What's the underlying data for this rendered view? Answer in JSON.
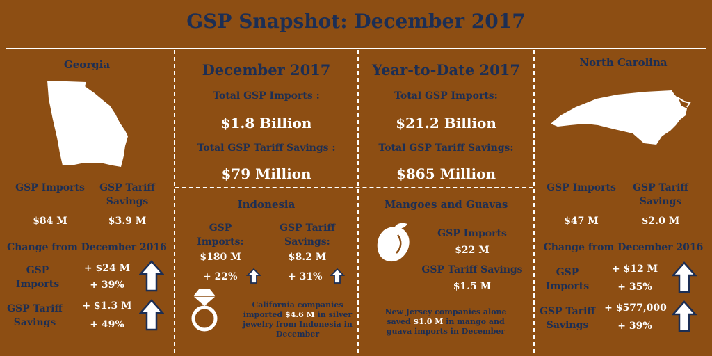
{
  "title": "GSP Snapshot: December 2017",
  "colors": {
    "background": "#8d4e13",
    "navy": "#1c2e54",
    "white": "#ffffff"
  },
  "georgia": {
    "name": "Georgia",
    "imports_label": "GSP Imports",
    "savings_label": "GSP Tariff Savings",
    "imports_value": "$84 M",
    "savings_value": "$3.9 M",
    "change_title": "Change from December 2016",
    "change_imports_label": "GSP Imports",
    "change_imports_abs": "+ $24 M",
    "change_imports_pct": "+ 39%",
    "change_savings_label": "GSP Tariff Savings",
    "change_savings_abs": "+ $1.3 M",
    "change_savings_pct": "+ 49%"
  },
  "december": {
    "heading": "December 2017",
    "imports_label": "Total GSP Imports :",
    "imports_value": "$1.8 Billion",
    "savings_label": "Total GSP Tariff Savings :",
    "savings_value": "$79 Million"
  },
  "ytd": {
    "heading": "Year-to-Date 2017",
    "imports_label": "Total GSP Imports:",
    "imports_value": "$21.2 Billion",
    "savings_label": "Total GSP Tariff Savings:",
    "savings_value": "$865 Million"
  },
  "indonesia": {
    "heading": "Indonesia",
    "imports_label": "GSP Imports:",
    "savings_label": "GSP Tariff Savings:",
    "imports_value": "$180 M",
    "savings_value": "$8.2 M",
    "imports_change": "+ 22%",
    "savings_change": "+ 31%",
    "note_pre": "California companies imported ",
    "note_amount": "$4.6 M",
    "note_post": " in silver jewelry from Indonesia in December",
    "icon": "ring-icon"
  },
  "mangoes": {
    "heading": "Mangoes and Guavas",
    "imports_label": "GSP Imports",
    "imports_value": "$22 M",
    "savings_label": "GSP Tariff Savings",
    "savings_value": "$1.5 M",
    "note_pre": "New Jersey companies alone saved ",
    "note_amount": "$1.0 M",
    "note_post": " in mango and guava imports in December",
    "icon": "mango-icon"
  },
  "north_carolina": {
    "name": "North Carolina",
    "imports_label": "GSP Imports",
    "savings_label": "GSP Tariff Savings",
    "imports_value": "$47 M",
    "savings_value": "$2.0 M",
    "change_title": "Change from December 2016",
    "change_imports_label": "GSP Imports",
    "change_imports_abs": "+ $12 M",
    "change_imports_pct": "+ 35%",
    "change_savings_label": "GSP Tariff Savings",
    "change_savings_abs": "+ $577,000",
    "change_savings_pct": "+ 39%"
  }
}
